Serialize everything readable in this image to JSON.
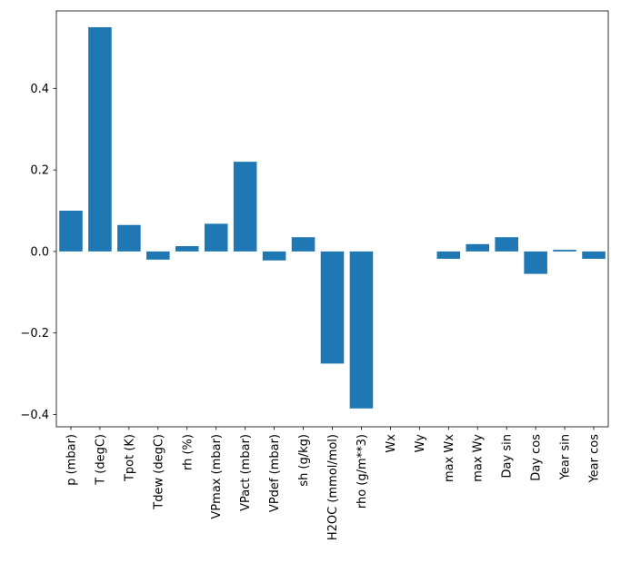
{
  "chart_data": {
    "type": "bar",
    "title": "",
    "xlabel": "",
    "ylabel": "",
    "categories": [
      "p (mbar)",
      "T (degC)",
      "Tpot (K)",
      "Tdew (degC)",
      "rh (%)",
      "VPmax (mbar)",
      "VPact (mbar)",
      "VPdef (mbar)",
      "sh (g/kg)",
      "H2OC (mmol/mol)",
      "rho (g/m**3)",
      "Wx",
      "Wy",
      "max Wx",
      "max Wy",
      "Day sin",
      "Day cos",
      "Year sin",
      "Year cos"
    ],
    "values": [
      0.1,
      0.55,
      0.065,
      -0.02,
      0.013,
      0.068,
      0.22,
      -0.022,
      0.035,
      -0.275,
      -0.385,
      0.0,
      0.0,
      -0.018,
      0.018,
      0.035,
      -0.055,
      0.004,
      -0.018
    ],
    "yticks": [
      -0.4,
      -0.2,
      0.0,
      0.2,
      0.4
    ],
    "ylim": [
      -0.43,
      0.59
    ],
    "bar_color": "#1f77b4",
    "axis_color": "#000000",
    "grid": false,
    "legend_position": "none"
  }
}
